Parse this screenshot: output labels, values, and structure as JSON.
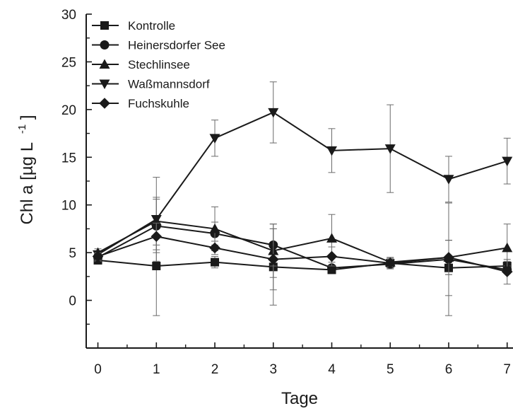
{
  "chart_data": {
    "type": "line",
    "xlabel": "Tage",
    "ylabel": "Chl a [µg L",
    "ylabel_superscript": "-1",
    "x": [
      0,
      1,
      2,
      3,
      4,
      5,
      6,
      7
    ],
    "x_ticks": [
      "0",
      "1",
      "2",
      "3",
      "4",
      "5",
      "6",
      "7"
    ],
    "y_ticks": [
      "0",
      "5",
      "10",
      "15",
      "20",
      "25",
      "30"
    ],
    "xlim": [
      -0.2,
      7.1
    ],
    "ylim": [
      -5,
      30
    ],
    "grid": false,
    "legend_position": "top-left",
    "line_color": "#1a1a1a",
    "series": [
      {
        "name": "Kontrolle",
        "marker": "square",
        "values": [
          4.2,
          3.6,
          4.0,
          3.5,
          3.2,
          3.9,
          3.4,
          3.6
        ],
        "errors": [
          0.3,
          5.2,
          0.6,
          4.0,
          0.4,
          0.5,
          2.9,
          0.5
        ]
      },
      {
        "name": "Heinersdorfer See",
        "marker": "circle",
        "values": [
          4.5,
          7.8,
          7.0,
          5.8,
          3.4,
          3.8,
          4.3,
          3.2
        ],
        "errors": [
          0.4,
          2.8,
          1.2,
          2.2,
          0.3,
          0.5,
          5.9,
          0.4
        ]
      },
      {
        "name": "Stechlinsee",
        "marker": "triangle-up",
        "values": [
          5.0,
          8.3,
          7.5,
          5.2,
          6.5,
          4.0,
          4.5,
          5.5
        ],
        "errors": [
          0.4,
          2.5,
          2.3,
          2.8,
          2.5,
          0.5,
          1.8,
          2.5
        ]
      },
      {
        "name": "Waßmannsdorf",
        "marker": "triangle-down",
        "values": [
          4.8,
          8.5,
          17.0,
          19.7,
          15.7,
          15.9,
          12.7,
          14.6
        ],
        "errors": [
          0.4,
          4.4,
          1.9,
          3.2,
          2.3,
          4.6,
          2.4,
          2.4
        ]
      },
      {
        "name": "Fuchskuhle",
        "marker": "diamond",
        "values": [
          4.6,
          6.7,
          5.5,
          4.3,
          4.6,
          3.9,
          4.5,
          3.0
        ],
        "errors": [
          0.4,
          1.4,
          0.7,
          3.2,
          1.0,
          0.6,
          1.8,
          1.3
        ]
      }
    ]
  }
}
